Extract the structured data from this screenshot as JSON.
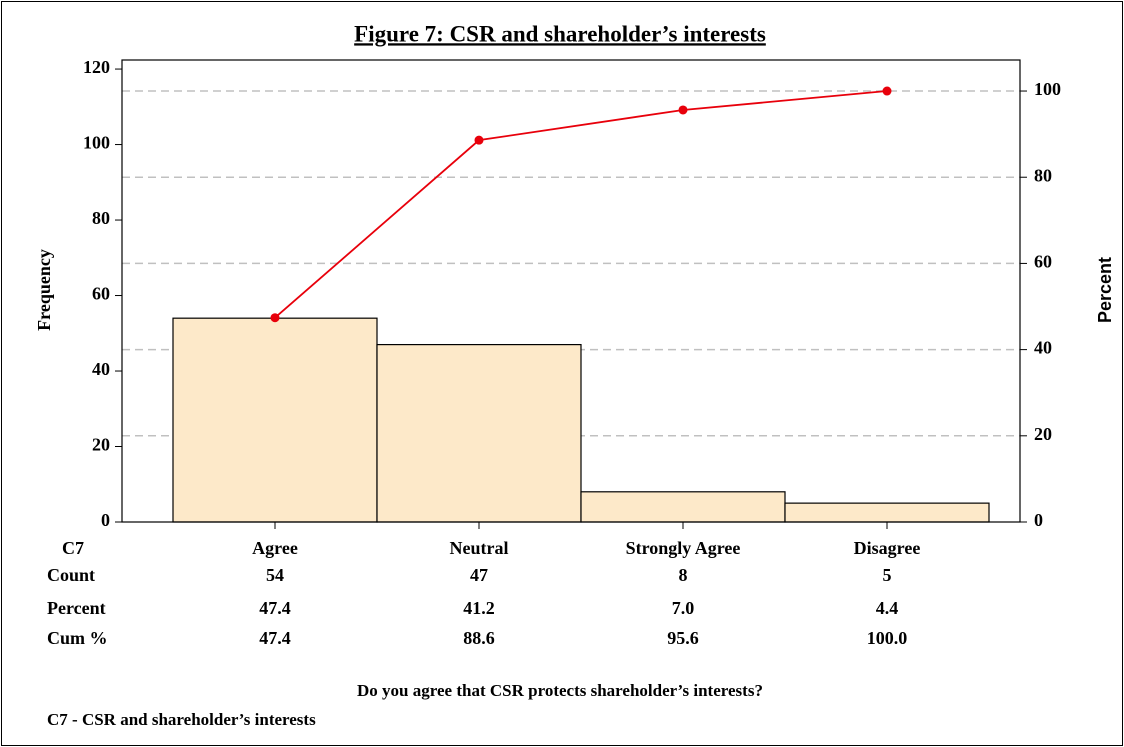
{
  "chart_data": {
    "type": "bar",
    "title": "Figure 7: CSR and shareholder’s interests",
    "categories": [
      "Agree",
      "Neutral",
      "Strongly Agree",
      "Disagree"
    ],
    "x_row_label": "C7",
    "series": [
      {
        "name": "Count",
        "type": "bar",
        "color": "#fde9c9",
        "values": [
          54,
          47,
          8,
          5
        ]
      },
      {
        "name": "Percent",
        "type": "table",
        "values": [
          47.4,
          41.2,
          7,
          4.4
        ],
        "value_labels": [
          "47.4",
          "41.2",
          "7.0",
          "4.4"
        ]
      },
      {
        "name": "Cum %",
        "type": "line",
        "axis": "y2",
        "color": "#e8000b",
        "values": [
          47.4,
          88.6,
          95.6,
          100
        ],
        "value_labels": [
          "47.4",
          "88.6",
          "95.6",
          "100.0"
        ]
      }
    ],
    "ylabel": "Frequency",
    "y2label": "Percent",
    "xlabel": "Do you agree that CSR protects shareholder’s interests?",
    "footnote": "C7 - CSR and shareholder’s interests",
    "ylim": [
      0,
      122.4
    ],
    "yticks": [
      0,
      20,
      40,
      60,
      80,
      100,
      120
    ],
    "y2lim": [
      0,
      107.2
    ],
    "y2ticks": [
      0,
      20,
      40,
      60,
      80,
      100
    ],
    "grid": "y2"
  }
}
